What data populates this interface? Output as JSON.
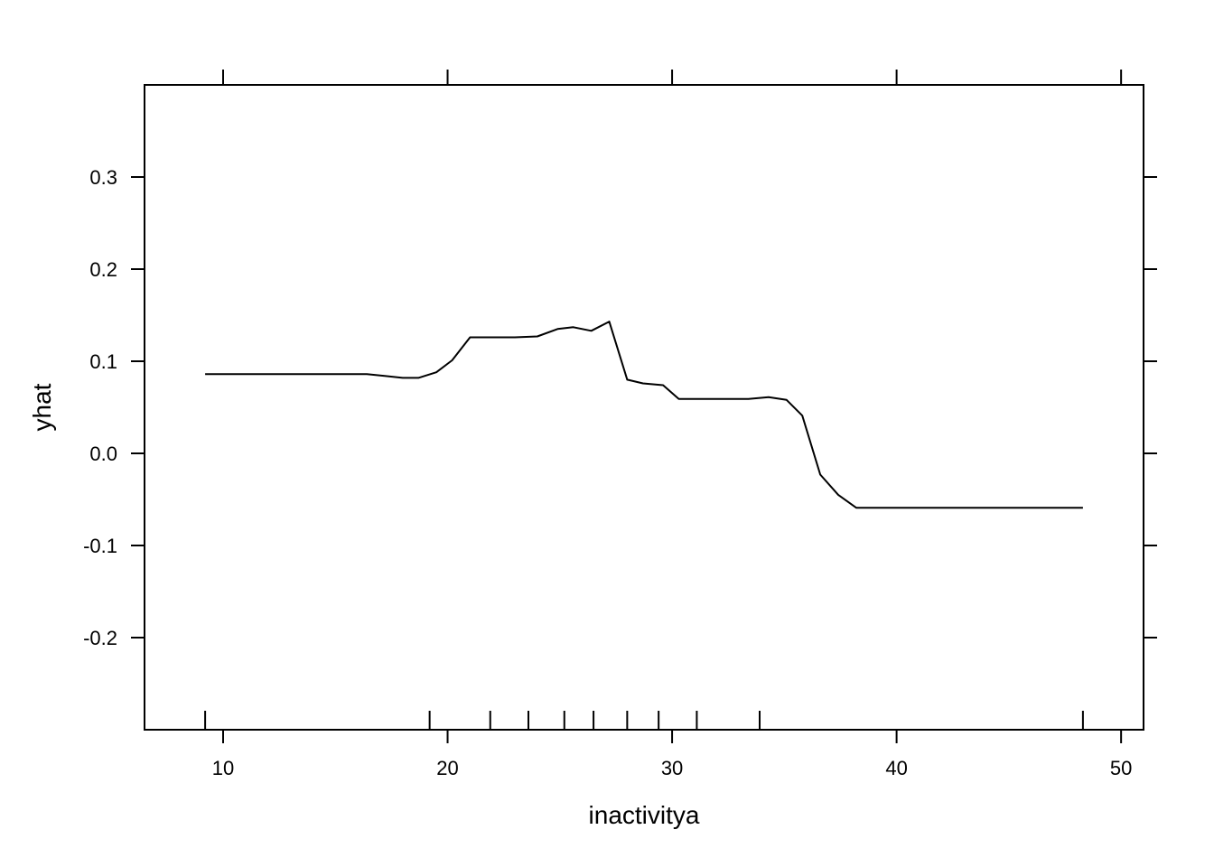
{
  "chart_data": {
    "type": "line",
    "title": "",
    "xlabel": "inactivitya",
    "ylabel": "yhat",
    "xlim": [
      6.5,
      51.0
    ],
    "ylim": [
      -0.3,
      0.4
    ],
    "x_ticks": [
      10,
      20,
      30,
      40,
      50
    ],
    "x_tick_labels": [
      "10",
      "20",
      "30",
      "40",
      "50"
    ],
    "y_ticks": [
      -0.2,
      -0.1,
      0.0,
      0.1,
      0.2,
      0.3
    ],
    "y_tick_labels": [
      "-0.2",
      "-0.1",
      "0.0",
      "0.1",
      "0.2",
      "0.3"
    ],
    "grid": false,
    "series": [
      {
        "x": [
          9.2,
          10.0,
          11.0,
          12.0,
          13.0,
          14.0,
          15.0,
          16.4,
          17.2,
          18.0,
          18.7,
          19.5,
          20.2,
          21.0,
          22.0,
          23.0,
          24.0,
          24.9,
          25.6,
          26.4,
          27.2,
          28.0,
          28.7,
          29.6,
          30.3,
          31.0,
          32.0,
          33.4,
          34.3,
          35.1,
          35.8,
          36.6,
          37.4,
          38.2,
          40.0,
          42.0,
          44.0,
          46.0,
          48.3
        ],
        "y": [
          0.086,
          0.086,
          0.086,
          0.086,
          0.086,
          0.086,
          0.086,
          0.086,
          0.084,
          0.082,
          0.082,
          0.088,
          0.101,
          0.126,
          0.126,
          0.126,
          0.127,
          0.135,
          0.137,
          0.133,
          0.143,
          0.08,
          0.076,
          0.074,
          0.059,
          0.059,
          0.059,
          0.059,
          0.061,
          0.058,
          0.041,
          -0.023,
          -0.045,
          -0.059,
          -0.059,
          -0.059,
          -0.059,
          -0.059,
          -0.059
        ]
      }
    ],
    "rug_x": [
      9.2,
      19.2,
      21.9,
      23.6,
      25.2,
      26.5,
      28.0,
      29.4,
      31.1,
      33.9,
      48.3
    ]
  }
}
